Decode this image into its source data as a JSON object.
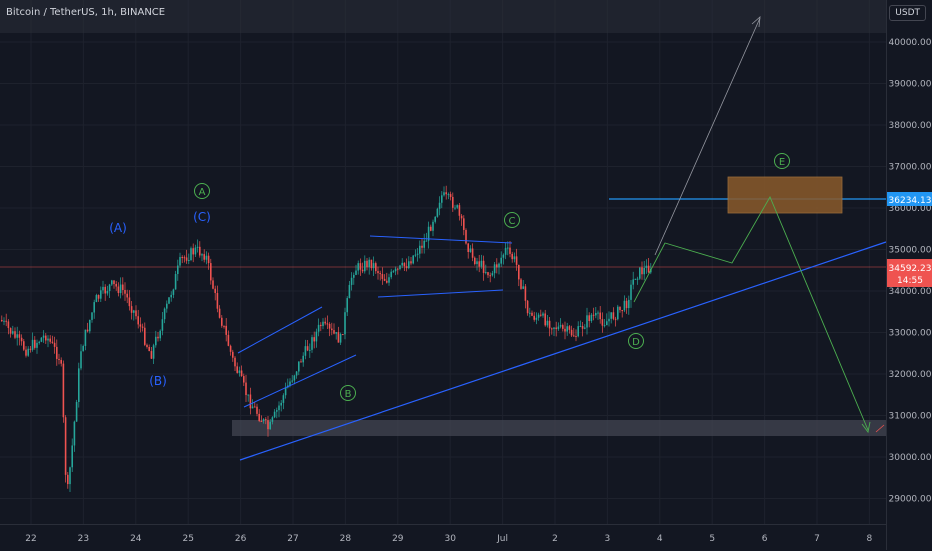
{
  "header": {
    "symbol_title": "Bitcoin / TetherUS, 1h, BINANCE",
    "currency_button": "USDT"
  },
  "colors": {
    "background": "#131722",
    "up_candle": "#26a69a",
    "down_candle": "#ef5350",
    "wave_blue": "#2962ff",
    "wave_green": "#4caf50",
    "highlight_box": "#8a5a2b",
    "support_box": "#434651"
  },
  "price_axis": {
    "ticks": [
      "40000.00",
      "39000.00",
      "38000.00",
      "37000.00",
      "36000.00",
      "35000.00",
      "34000.00",
      "33000.00",
      "32000.00",
      "31000.00",
      "30000.00",
      "29000.00"
    ],
    "level_label": "36234.13",
    "last_price_label": "34592.23",
    "countdown_label": "14:55"
  },
  "time_axis": {
    "ticks": [
      "22",
      "23",
      "24",
      "25",
      "26",
      "27",
      "28",
      "29",
      "30",
      "Jul",
      "2",
      "3",
      "4",
      "5",
      "6",
      "7",
      "8"
    ]
  },
  "wave_labels": {
    "paren_a": "(A)",
    "paren_b": "(B)",
    "paren_c": "(C)",
    "circle_a": "A",
    "circle_b": "B",
    "circle_c": "C",
    "circle_d": "D",
    "circle_e": "E"
  }
}
